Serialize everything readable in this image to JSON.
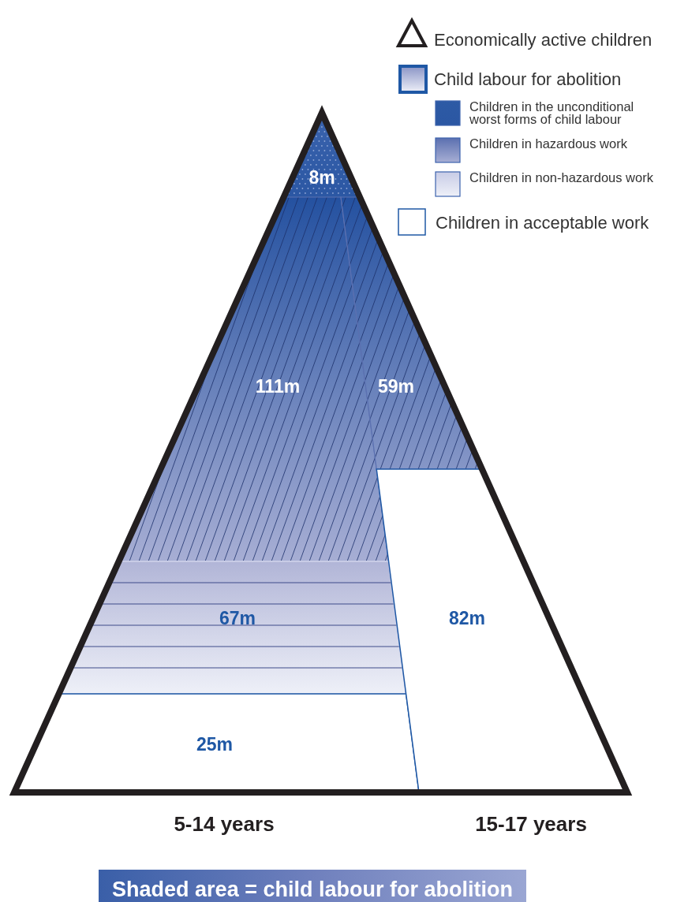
{
  "chart_data": {
    "type": "other",
    "categories": [
      "5-14 years",
      "15-17 years"
    ],
    "legend": "top right",
    "annotations": [
      "Economically active children",
      "Child labour for abolition",
      "Shaded area = child labour for abolition"
    ],
    "series": [
      {
        "name": "Children in the unconditional worst forms of child labour",
        "color": "#2d5aa5",
        "values": [
          8,
          null
        ],
        "value_labels": [
          "8m",
          null
        ]
      },
      {
        "name": "Children in hazardous work",
        "color": "#5b70b0",
        "values": [
          111,
          59
        ],
        "value_labels": [
          "111m",
          "59m"
        ]
      },
      {
        "name": "Children in non-hazardous work",
        "color": "#c8cce6",
        "values": [
          67,
          null
        ],
        "value_labels": [
          "67m",
          null
        ]
      },
      {
        "name": "Children in acceptable work",
        "color": "#ffffff",
        "values": [
          25,
          82
        ],
        "value_labels": [
          "25m",
          "82m"
        ]
      }
    ]
  }
}
